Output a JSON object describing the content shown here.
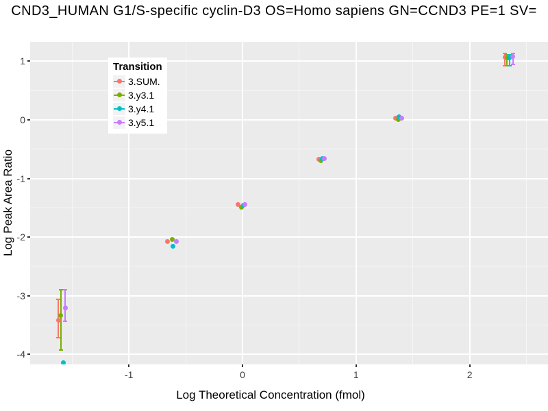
{
  "title": "CND3_HUMAN G1/S-specific cyclin-D3 OS=Homo sapiens GN=CCND3 PE=1 SV=",
  "chart_data": {
    "type": "scatter",
    "title": "CND3_HUMAN G1/S-specific cyclin-D3 OS=Homo sapiens GN=CCND3 PE=1 SV=",
    "xlabel": "Log Theoretical Concentration (fmol)",
    "ylabel": "Log Peak Area Ratio",
    "xlim": [
      -1.87,
      2.69
    ],
    "ylim": [
      -4.17,
      1.33
    ],
    "x_ticks": [
      -1,
      0,
      1,
      2
    ],
    "y_ticks": [
      1,
      0,
      -1,
      -2,
      -3,
      -4
    ],
    "x_minor_ticks": [
      -1.5,
      -0.5,
      0.5,
      1.5,
      2.5
    ],
    "y_minor_ticks": [
      0.5,
      -0.5,
      -1.5,
      -2.5,
      -3.5
    ],
    "grid": "major+minor",
    "panel_bg": "#EBEBEB",
    "grid_color": "#FFFFFF",
    "legend": {
      "title": "Transition",
      "position": "top-left-inside"
    },
    "series": [
      {
        "name": "3.SUM.",
        "color": "#F8766D",
        "points": [
          {
            "x": -1.62,
            "y": -3.42,
            "err_lo": -3.72,
            "err_hi": -3.06
          },
          {
            "x": -0.66,
            "y": -2.07
          },
          {
            "x": -0.04,
            "y": -1.44
          },
          {
            "x": 0.67,
            "y": -0.67
          },
          {
            "x": 1.35,
            "y": 0.03
          },
          {
            "x": 2.31,
            "y": 1.07,
            "err_lo": 0.92,
            "err_hi": 1.13
          }
        ]
      },
      {
        "name": "3.y3.1",
        "color": "#7CAE00",
        "points": [
          {
            "x": -1.6,
            "y": -3.34,
            "err_lo": -3.93,
            "err_hi": -2.9
          },
          {
            "x": -0.62,
            "y": -2.04
          },
          {
            "x": -0.01,
            "y": -1.49
          },
          {
            "x": 0.69,
            "y": -0.7
          },
          {
            "x": 1.37,
            "y": 0.01
          },
          {
            "x": 2.33,
            "y": 1.05,
            "err_lo": 0.92,
            "err_hi": 1.11
          }
        ]
      },
      {
        "name": "3.y4.1",
        "color": "#00BFC4",
        "points": [
          {
            "x": -1.58,
            "y": -4.14
          },
          {
            "x": -0.61,
            "y": -2.15
          },
          {
            "x": 0.01,
            "y": -1.46
          },
          {
            "x": 0.7,
            "y": -0.66
          },
          {
            "x": 1.38,
            "y": 0.05
          },
          {
            "x": 2.35,
            "y": 1.06,
            "err_lo": 0.92,
            "err_hi": 1.11
          }
        ]
      },
      {
        "name": "3.y5.1",
        "color": "#C77CFF",
        "points": [
          {
            "x": -1.56,
            "y": -3.21,
            "err_lo": -3.44,
            "err_hi": -2.9
          },
          {
            "x": -0.58,
            "y": -2.07
          },
          {
            "x": 0.02,
            "y": -1.44
          },
          {
            "x": 0.72,
            "y": -0.66
          },
          {
            "x": 1.4,
            "y": 0.03
          },
          {
            "x": 2.38,
            "y": 1.08,
            "err_lo": 0.94,
            "err_hi": 1.13
          }
        ]
      }
    ]
  }
}
